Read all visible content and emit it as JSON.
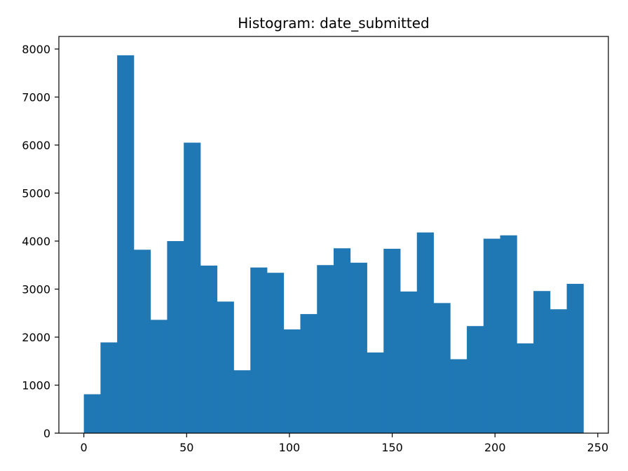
{
  "chart_data": {
    "type": "bar",
    "title": "Histogram: date_submitted",
    "xlabel": "",
    "ylabel": "",
    "xlim": [
      -12.15,
      255.15
    ],
    "ylim": [
      0,
      8262
    ],
    "xticks": [
      0,
      50,
      100,
      150,
      200,
      250
    ],
    "yticks": [
      0,
      1000,
      2000,
      3000,
      4000,
      5000,
      6000,
      7000,
      8000
    ],
    "grid": false,
    "bar_color": "#1f77b4",
    "bin_edges": [
      0,
      8.1,
      16.2,
      24.3,
      32.4,
      40.5,
      48.6,
      56.7,
      64.8,
      72.9,
      81.0,
      89.1,
      97.2,
      105.3,
      113.4,
      121.5,
      129.6,
      137.7,
      145.8,
      153.9,
      162.0,
      170.1,
      178.2,
      186.3,
      194.4,
      202.5,
      210.6,
      218.7,
      226.8,
      234.9,
      243.0
    ],
    "values": [
      810,
      1890,
      7870,
      3820,
      2360,
      4000,
      6050,
      3490,
      2740,
      1310,
      3450,
      3340,
      2160,
      2480,
      3500,
      3850,
      3550,
      1680,
      3840,
      2950,
      4180,
      2710,
      1540,
      2230,
      4050,
      4120,
      1870,
      2960,
      2580,
      3110
    ]
  }
}
